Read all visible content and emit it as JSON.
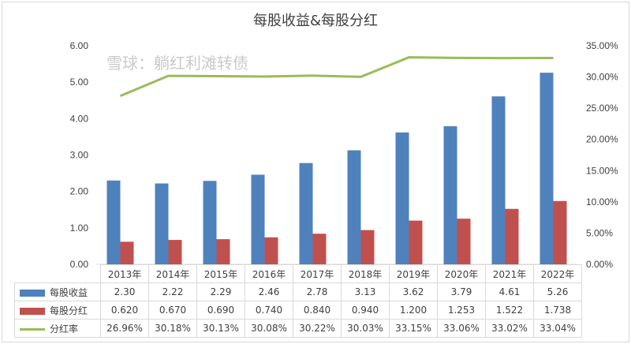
{
  "chart_data": {
    "type": "bar+line",
    "title": "每股收益&每股分红",
    "categories": [
      "2013年",
      "2014年",
      "2015年",
      "2016年",
      "2017年",
      "2018年",
      "2019年",
      "2020年",
      "2021年",
      "2022年"
    ],
    "series": [
      {
        "name": "每股收益",
        "type": "bar",
        "axis": "left",
        "color": "#4f81bd",
        "values": [
          2.3,
          2.22,
          2.29,
          2.46,
          2.78,
          3.13,
          3.62,
          3.79,
          4.61,
          5.26
        ],
        "labels": [
          "2.30",
          "2.22",
          "2.29",
          "2.46",
          "2.78",
          "3.13",
          "3.62",
          "3.79",
          "4.61",
          "5.26"
        ]
      },
      {
        "name": "每股分红",
        "type": "bar",
        "axis": "left",
        "color": "#c0504d",
        "values": [
          0.62,
          0.67,
          0.69,
          0.74,
          0.84,
          0.94,
          1.2,
          1.253,
          1.522,
          1.738
        ],
        "labels": [
          "0.620",
          "0.670",
          "0.690",
          "0.740",
          "0.840",
          "0.940",
          "1.200",
          "1.253",
          "1.522",
          "1.738"
        ]
      },
      {
        "name": "分红率",
        "type": "line",
        "axis": "right",
        "color": "#9bbb59",
        "values": [
          26.96,
          30.18,
          30.13,
          30.08,
          30.22,
          30.03,
          33.15,
          33.06,
          33.02,
          33.04
        ],
        "labels": [
          "26.96%",
          "30.18%",
          "30.13%",
          "30.08%",
          "30.22%",
          "30.03%",
          "33.15%",
          "33.06%",
          "33.02%",
          "33.04%"
        ]
      }
    ],
    "ylim": [
      0,
      6
    ],
    "yticks": [
      "0.00",
      "1.00",
      "2.00",
      "3.00",
      "4.00",
      "5.00",
      "6.00"
    ],
    "y2lim": [
      0,
      35
    ],
    "y2ticks": [
      "0.00%",
      "5.00%",
      "10.00%",
      "15.00%",
      "20.00%",
      "25.00%",
      "30.00%",
      "35.00%"
    ],
    "legend": "data-table"
  },
  "watermark": "雪球：躺红利滩转债"
}
